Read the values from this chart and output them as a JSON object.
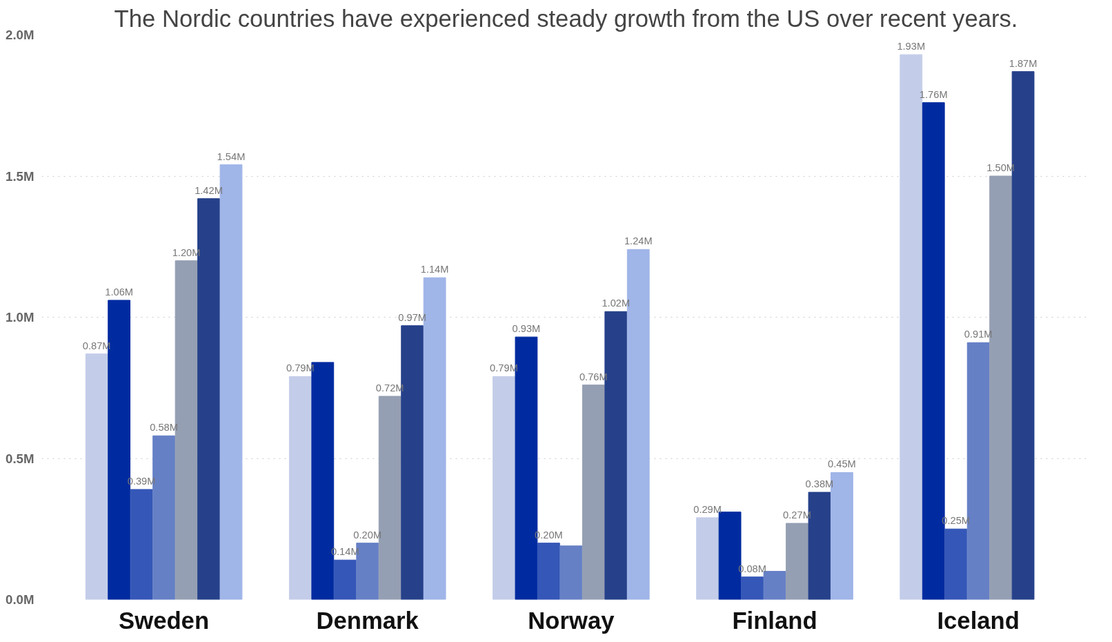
{
  "chart_data": {
    "type": "bar",
    "title": "The Nordic countries have experienced steady growth from the US over recent years.",
    "categories": [
      "Sweden",
      "Denmark",
      "Norway",
      "Finland",
      "Iceland"
    ],
    "series": [
      {
        "color": "#c3cde9",
        "values": [
          0.87,
          0.79,
          0.79,
          0.29,
          1.93
        ],
        "value_labels": [
          "0.87M",
          "0.79M",
          "0.79M",
          "0.29M",
          "1.93M"
        ]
      },
      {
        "color": "#002ba0",
        "values": [
          1.06,
          0.84,
          0.93,
          0.31,
          1.76
        ],
        "value_labels": [
          "1.06M",
          null,
          "0.93M",
          null,
          "1.76M"
        ]
      },
      {
        "color": "#3557b7",
        "values": [
          0.39,
          0.14,
          0.2,
          0.08,
          0.25
        ],
        "value_labels": [
          "0.39M",
          "0.14M",
          "0.20M",
          "0.08M",
          "0.25M"
        ]
      },
      {
        "color": "#6680c6",
        "values": [
          0.58,
          0.2,
          0.19,
          0.1,
          0.91
        ],
        "value_labels": [
          "0.58M",
          "0.20M",
          null,
          null,
          "0.91M"
        ]
      },
      {
        "color": "#959fb3",
        "values": [
          1.2,
          0.72,
          0.76,
          0.27,
          1.5
        ],
        "value_labels": [
          "1.20M",
          "0.72M",
          "0.76M",
          "0.27M",
          "1.50M"
        ]
      },
      {
        "color": "#26418a",
        "values": [
          1.42,
          0.97,
          1.02,
          0.38,
          1.87
        ],
        "value_labels": [
          "1.42M",
          "0.97M",
          "1.02M",
          "0.38M",
          "1.87M"
        ]
      },
      {
        "color": "#a0b5e8",
        "values": [
          1.54,
          1.14,
          1.24,
          0.45,
          null
        ],
        "value_labels": [
          "1.54M",
          "1.14M",
          "1.24M",
          "0.45M",
          null
        ]
      }
    ],
    "ylim": [
      0,
      2.0
    ],
    "yticks": [
      {
        "value": 0,
        "label": "0.0M"
      },
      {
        "value": 0.5,
        "label": "0.5M"
      },
      {
        "value": 1.0,
        "label": "1.0M"
      },
      {
        "value": 1.5,
        "label": "1.5M"
      },
      {
        "value": 2.0,
        "label": "2.0M"
      }
    ],
    "grid": "y"
  }
}
